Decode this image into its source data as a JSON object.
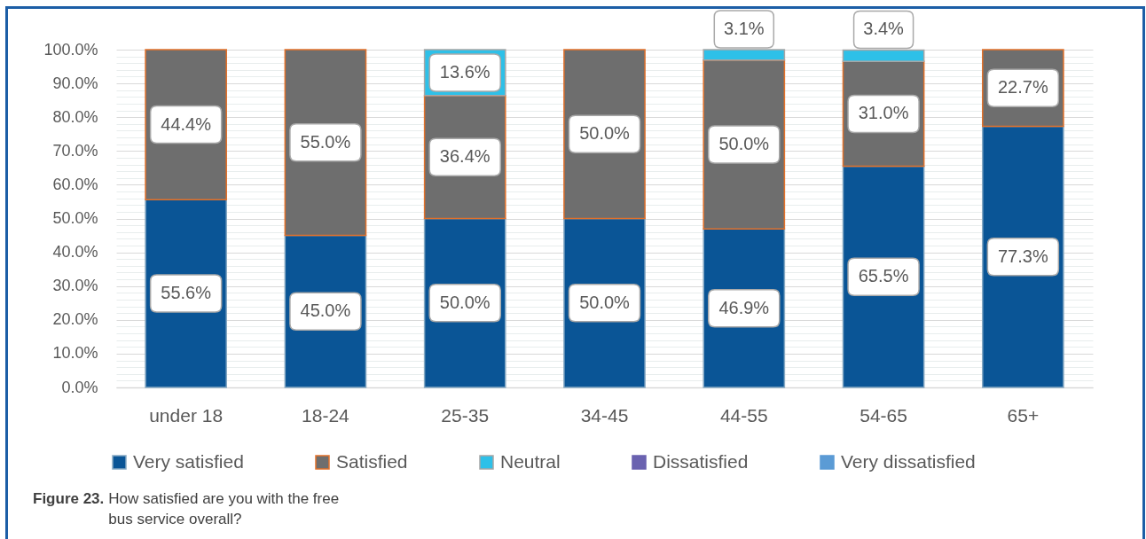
{
  "chart_data": {
    "type": "bar",
    "stacked": true,
    "categories": [
      "under 18",
      "18-24",
      "25-35",
      "34-45",
      "44-55",
      "54-65",
      "65+"
    ],
    "series": [
      {
        "name": "Very satisfied",
        "color": "#0a5596",
        "values": [
          55.6,
          45.0,
          50.0,
          50.0,
          46.9,
          65.5,
          77.3
        ],
        "value_labels": [
          "55.6%",
          "45.0%",
          "50.0%",
          "50.0%",
          "46.9%",
          "65.5%",
          "77.3%"
        ]
      },
      {
        "name": "Satisfied",
        "color": "#6e6e6e",
        "values": [
          44.4,
          55.0,
          36.4,
          50.0,
          50.0,
          31.0,
          22.7
        ],
        "value_labels": [
          "44.4%",
          "55.0%",
          "36.4%",
          "50.0%",
          "50.0%",
          "31.0%",
          "22.7%"
        ]
      },
      {
        "name": "Neutral",
        "color": "#2ec0e8",
        "values": [
          null,
          null,
          13.6,
          null,
          3.1,
          3.4,
          null
        ],
        "value_labels": [
          null,
          null,
          "13.6%",
          null,
          "3.1%",
          "3.4%",
          null
        ]
      },
      {
        "name": "Dissatisfied",
        "color": "#6a62b0",
        "values": [
          null,
          null,
          null,
          null,
          null,
          null,
          null
        ]
      },
      {
        "name": "Very dissatisfied",
        "color": "#5b9bd5",
        "values": [
          null,
          null,
          null,
          null,
          null,
          null,
          null
        ]
      }
    ],
    "ylim": [
      0,
      100
    ],
    "yticks": [
      {
        "value": 0,
        "label": "0.0%"
      },
      {
        "value": 2,
        "label": null
      },
      {
        "value": 4,
        "label": null
      },
      {
        "value": 6,
        "label": null
      },
      {
        "value": 8,
        "label": null
      },
      {
        "value": 10,
        "label": "10.0%"
      },
      {
        "value": 12,
        "label": null
      },
      {
        "value": 14,
        "label": null
      },
      {
        "value": 16,
        "label": null
      },
      {
        "value": 18,
        "label": null
      },
      {
        "value": 20,
        "label": "20.0%"
      },
      {
        "value": 22,
        "label": null
      },
      {
        "value": 24,
        "label": null
      },
      {
        "value": 26,
        "label": null
      },
      {
        "value": 28,
        "label": null
      },
      {
        "value": 30,
        "label": "30.0%"
      },
      {
        "value": 32,
        "label": null
      },
      {
        "value": 34,
        "label": null
      },
      {
        "value": 36,
        "label": null
      },
      {
        "value": 38,
        "label": null
      },
      {
        "value": 40,
        "label": "40.0%"
      },
      {
        "value": 42,
        "label": null
      },
      {
        "value": 44,
        "label": null
      },
      {
        "value": 46,
        "label": null
      },
      {
        "value": 48,
        "label": null
      },
      {
        "value": 50,
        "label": "50.0%"
      },
      {
        "value": 52,
        "label": null
      },
      {
        "value": 54,
        "label": null
      },
      {
        "value": 56,
        "label": null
      },
      {
        "value": 58,
        "label": null
      },
      {
        "value": 60,
        "label": "60.0%"
      },
      {
        "value": 62,
        "label": null
      },
      {
        "value": 64,
        "label": null
      },
      {
        "value": 66,
        "label": null
      },
      {
        "value": 68,
        "label": null
      },
      {
        "value": 70,
        "label": "70.0%"
      },
      {
        "value": 72,
        "label": null
      },
      {
        "value": 74,
        "label": null
      },
      {
        "value": 76,
        "label": null
      },
      {
        "value": 78,
        "label": null
      },
      {
        "value": 80,
        "label": "80.0%"
      },
      {
        "value": 82,
        "label": null
      },
      {
        "value": 84,
        "label": null
      },
      {
        "value": 86,
        "label": null
      },
      {
        "value": 88,
        "label": null
      },
      {
        "value": 90,
        "label": "90.0%"
      },
      {
        "value": 92,
        "label": null
      },
      {
        "value": 94,
        "label": null
      },
      {
        "value": 96,
        "label": null
      },
      {
        "value": 98,
        "label": null
      },
      {
        "value": 100,
        "label": "100.0%"
      }
    ],
    "grid": "y",
    "legend": "bottom",
    "annotations": [
      "Figure 23.",
      "How satisfied are you with the free bus service overall?"
    ]
  }
}
